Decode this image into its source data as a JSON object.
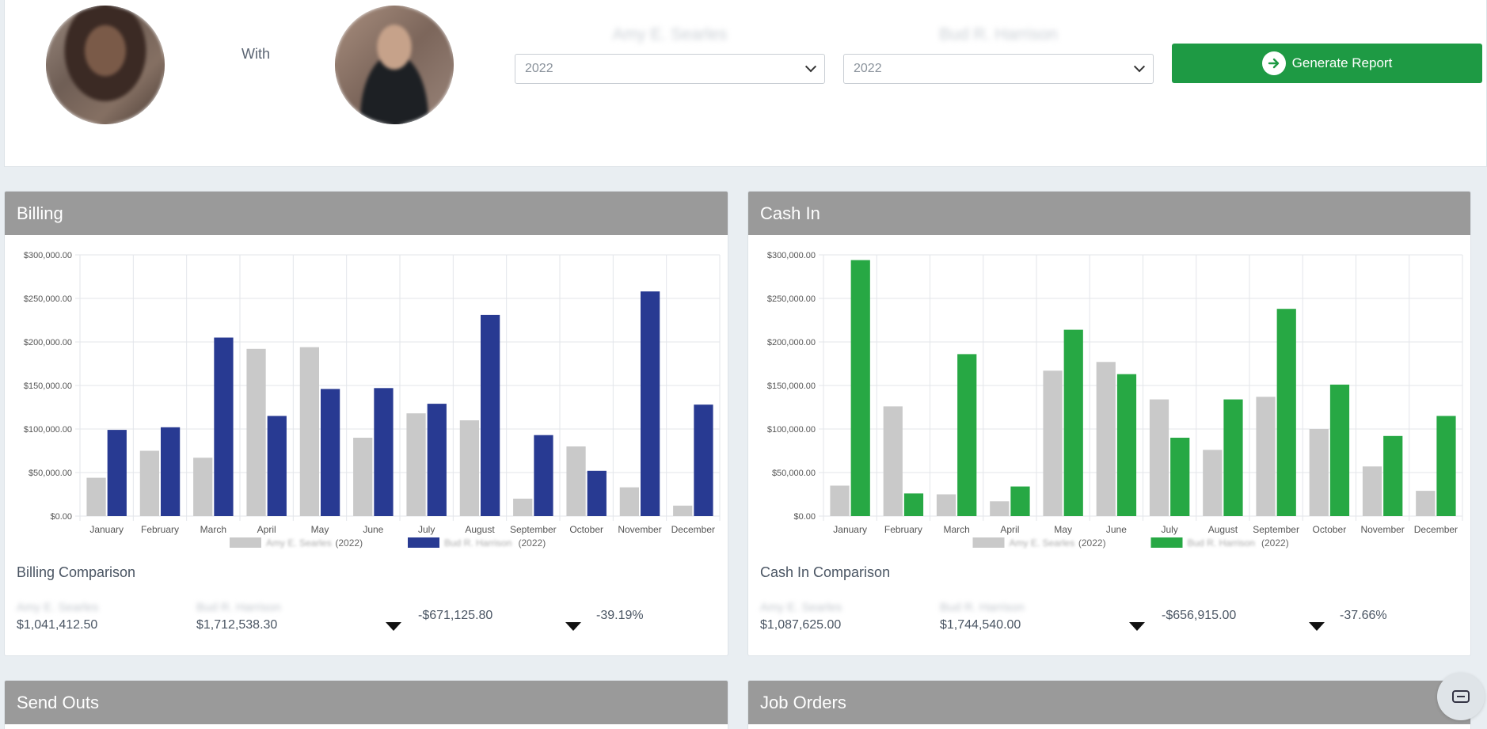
{
  "header": {
    "with_label": "With",
    "person1": {
      "name": "Amy E. Searles",
      "year": "2022"
    },
    "person2": {
      "name": "Bud R. Harrison",
      "year": "2022"
    },
    "generate_label": "Generate Report"
  },
  "colors": {
    "gray_series": "#c9c9c9",
    "billing_series": "#283a92",
    "cash_series": "#27a844",
    "button": "#1e9a44",
    "panel_header": "#9a9a9a"
  },
  "icons": {
    "generate": "arrow-right-circle-icon",
    "chevron": "chevron-down-icon",
    "down": "triangle-down-icon",
    "chat": "chat-icon"
  },
  "billing": {
    "title": "Billing",
    "comparison_title": "Billing Comparison",
    "p1_name": "Amy E. Searles",
    "p1_total": "$1,041,412.50",
    "p2_name": "Bud R. Harrison",
    "p2_total": "$1,712,538.30",
    "diff": "-$671,125.80",
    "pct": "-39.19%"
  },
  "cash_in": {
    "title": "Cash In",
    "comparison_title": "Cash In Comparison",
    "p1_name": "Amy E. Searles",
    "p1_total": "$1,087,625.00",
    "p2_name": "Bud R. Harrison",
    "p2_total": "$1,744,540.00",
    "diff": "-$656,915.00",
    "pct": "-37.66%"
  },
  "send_outs": {
    "title": "Send Outs"
  },
  "job_orders": {
    "title": "Job Orders"
  },
  "chart_data": [
    {
      "type": "bar",
      "categories": [
        "January",
        "February",
        "March",
        "April",
        "May",
        "June",
        "July",
        "August",
        "September",
        "October",
        "November",
        "December"
      ],
      "series": [
        {
          "name": "Amy E. Searles (2022)",
          "values": [
            44000,
            75000,
            67000,
            192000,
            194000,
            90000,
            118000,
            110000,
            20000,
            80000,
            33000,
            12000
          ]
        },
        {
          "name": "Bud R. Harrison (2022)",
          "values": [
            99000,
            102000,
            205000,
            115000,
            146000,
            147000,
            129000,
            231000,
            93000,
            52000,
            258000,
            128000
          ]
        }
      ],
      "yticks": [
        "$0.00",
        "$50,000.00",
        "$100,000.00",
        "$150,000.00",
        "$200,000.00",
        "$250,000.00",
        "$300,000.00"
      ],
      "ylim": [
        0,
        300000
      ],
      "grid": true,
      "legend": "bottom"
    },
    {
      "type": "bar",
      "categories": [
        "January",
        "February",
        "March",
        "April",
        "May",
        "June",
        "July",
        "August",
        "September",
        "October",
        "November",
        "December"
      ],
      "series": [
        {
          "name": "Amy E. Searles (2022)",
          "values": [
            35000,
            126000,
            25000,
            17000,
            167000,
            177000,
            134000,
            76000,
            137000,
            100000,
            57000,
            29000
          ]
        },
        {
          "name": "Bud R. Harrison (2022)",
          "values": [
            294000,
            26000,
            186000,
            34000,
            214000,
            163000,
            90000,
            134000,
            238000,
            151000,
            92000,
            115000
          ]
        }
      ],
      "yticks": [
        "$0.00",
        "$50,000.00",
        "$100,000.00",
        "$150,000.00",
        "$200,000.00",
        "$250,000.00",
        "$300,000.00"
      ],
      "ylim": [
        0,
        300000
      ],
      "grid": true,
      "legend": "bottom"
    }
  ]
}
